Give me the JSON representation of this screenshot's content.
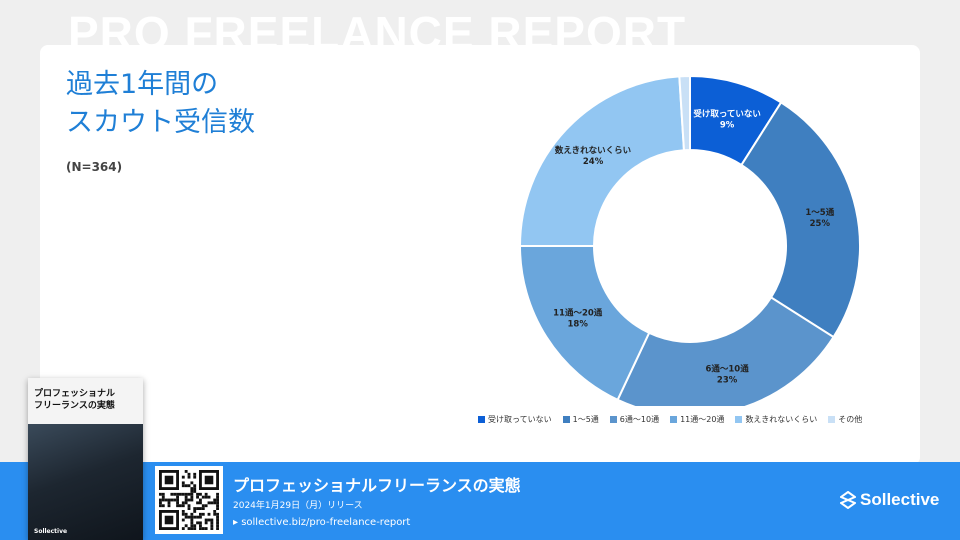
{
  "background_title": "PRO FREELANCE REPORT",
  "title_lines": [
    "過去1年間の",
    "スカウト受信数"
  ],
  "sample_size": "(N=364)",
  "chart_data": {
    "type": "pie",
    "donut": true,
    "categories": [
      "受け取っていない",
      "1〜5通",
      "6通〜10通",
      "11通〜20通",
      "数えきれないくらい",
      "その他"
    ],
    "values": [
      9,
      25,
      23,
      18,
      24,
      1
    ],
    "data_labels": [
      {
        "name": "受け取っていない",
        "pct": "9%"
      },
      {
        "name": "1〜5通",
        "pct": "25%"
      },
      {
        "name": "6通〜10通",
        "pct": "23%"
      },
      {
        "name": "11通〜20通",
        "pct": "18%"
      },
      {
        "name": "数えきれないくらい",
        "pct": "24%"
      },
      {
        "name": "",
        "pct": ""
      }
    ],
    "colors": [
      "#0c5fd6",
      "#3f7fc0",
      "#5b94cc",
      "#6aa6dc",
      "#92c6f2",
      "#c9e0f6"
    ],
    "legend_position": "bottom"
  },
  "footer": {
    "title": "プロフェッショナルフリーランスの実態",
    "date": "2024年1月29日（月）リリース",
    "url": "▸ sollective.biz/pro-freelance-report",
    "brand": "Sollective"
  },
  "book": {
    "title_line1": "プロフェッショナル",
    "title_line2": "フリーランスの実態",
    "brand": "Sollective"
  }
}
